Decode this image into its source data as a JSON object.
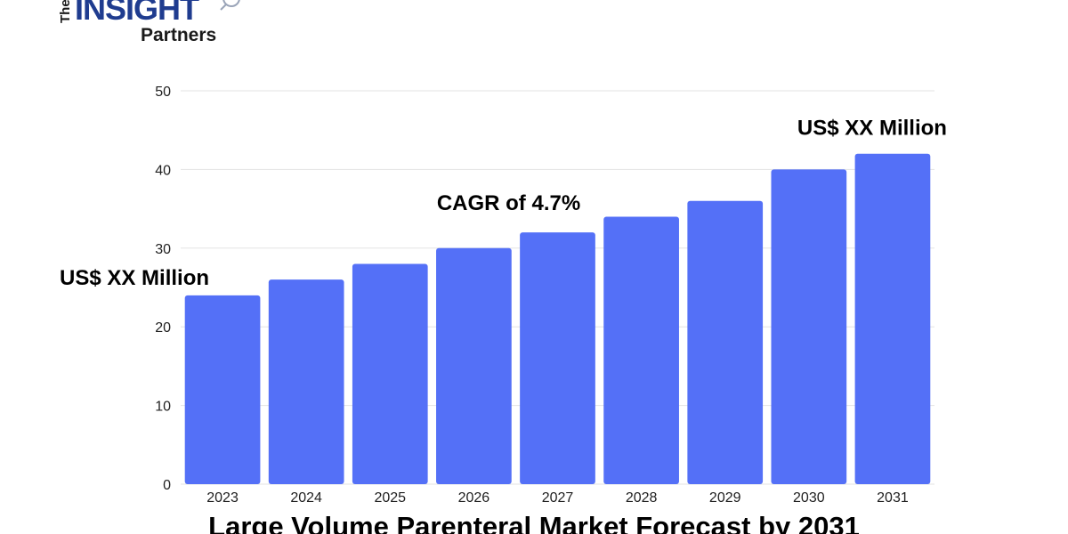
{
  "logo": {
    "wordmark_top": "The",
    "wordmark_main": "INSIGHT",
    "wordmark_sub": "Partners"
  },
  "colors": {
    "bar": "#5470F7",
    "grid": "#E3E3E3",
    "text": "#222222"
  },
  "chart_data": {
    "type": "bar",
    "title": "Large Volume Parenteral Market Forecast by 2031",
    "xlabel": "",
    "ylabel": "",
    "categories": [
      "2023",
      "2024",
      "2025",
      "2026",
      "2027",
      "2028",
      "2029",
      "2030",
      "2031"
    ],
    "values": [
      24,
      26,
      28,
      30,
      32,
      34,
      36,
      40,
      42
    ],
    "ylim": [
      0,
      50
    ],
    "yticks": [
      0,
      10,
      20,
      30,
      40,
      50
    ],
    "grid": true,
    "legend": "none",
    "annotations": [
      {
        "text": "US$ XX Million",
        "anchor_category": "2023"
      },
      {
        "text": "CAGR of 4.7%",
        "anchor_category": "2027"
      },
      {
        "text": "US$ XX Million",
        "anchor_category": "2031"
      }
    ]
  }
}
